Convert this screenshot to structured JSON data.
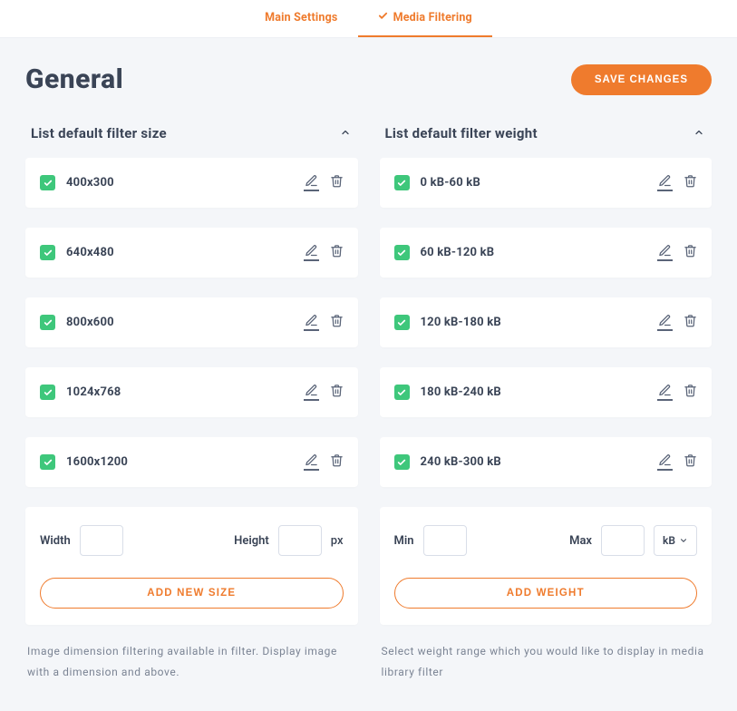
{
  "tabs": {
    "main": "Main Settings",
    "media": "Media Filtering"
  },
  "page": {
    "title": "General",
    "save_button": "SAVE CHANGES"
  },
  "colors": {
    "accent": "#ef7b2d",
    "checkbox": "#3ec77b",
    "background": "#f4f6f9",
    "card": "#ffffff",
    "text": "#3a4456",
    "muted": "#7b8494",
    "border": "#d9dee8"
  },
  "size_panel": {
    "title": "List default filter size",
    "items": [
      {
        "label": "400x300",
        "checked": true
      },
      {
        "label": "640x480",
        "checked": true
      },
      {
        "label": "800x600",
        "checked": true
      },
      {
        "label": "1024x768",
        "checked": true
      },
      {
        "label": "1600x1200",
        "checked": true
      }
    ],
    "form": {
      "width_label": "Width",
      "height_label": "Height",
      "unit": "px",
      "button": "ADD NEW SIZE"
    },
    "help": "Image dimension filtering available in filter. Display image with a dimension and above."
  },
  "weight_panel": {
    "title": "List default filter weight",
    "items": [
      {
        "label": "0 kB-60 kB",
        "checked": true
      },
      {
        "label": "60 kB-120 kB",
        "checked": true
      },
      {
        "label": "120 kB-180 kB",
        "checked": true
      },
      {
        "label": "180 kB-240 kB",
        "checked": true
      },
      {
        "label": "240 kB-300 kB",
        "checked": true
      }
    ],
    "form": {
      "min_label": "Min",
      "max_label": "Max",
      "unit_select": "kB",
      "button": "ADD WEIGHT"
    },
    "help": "Select weight range which you would like to display in media library filter"
  }
}
